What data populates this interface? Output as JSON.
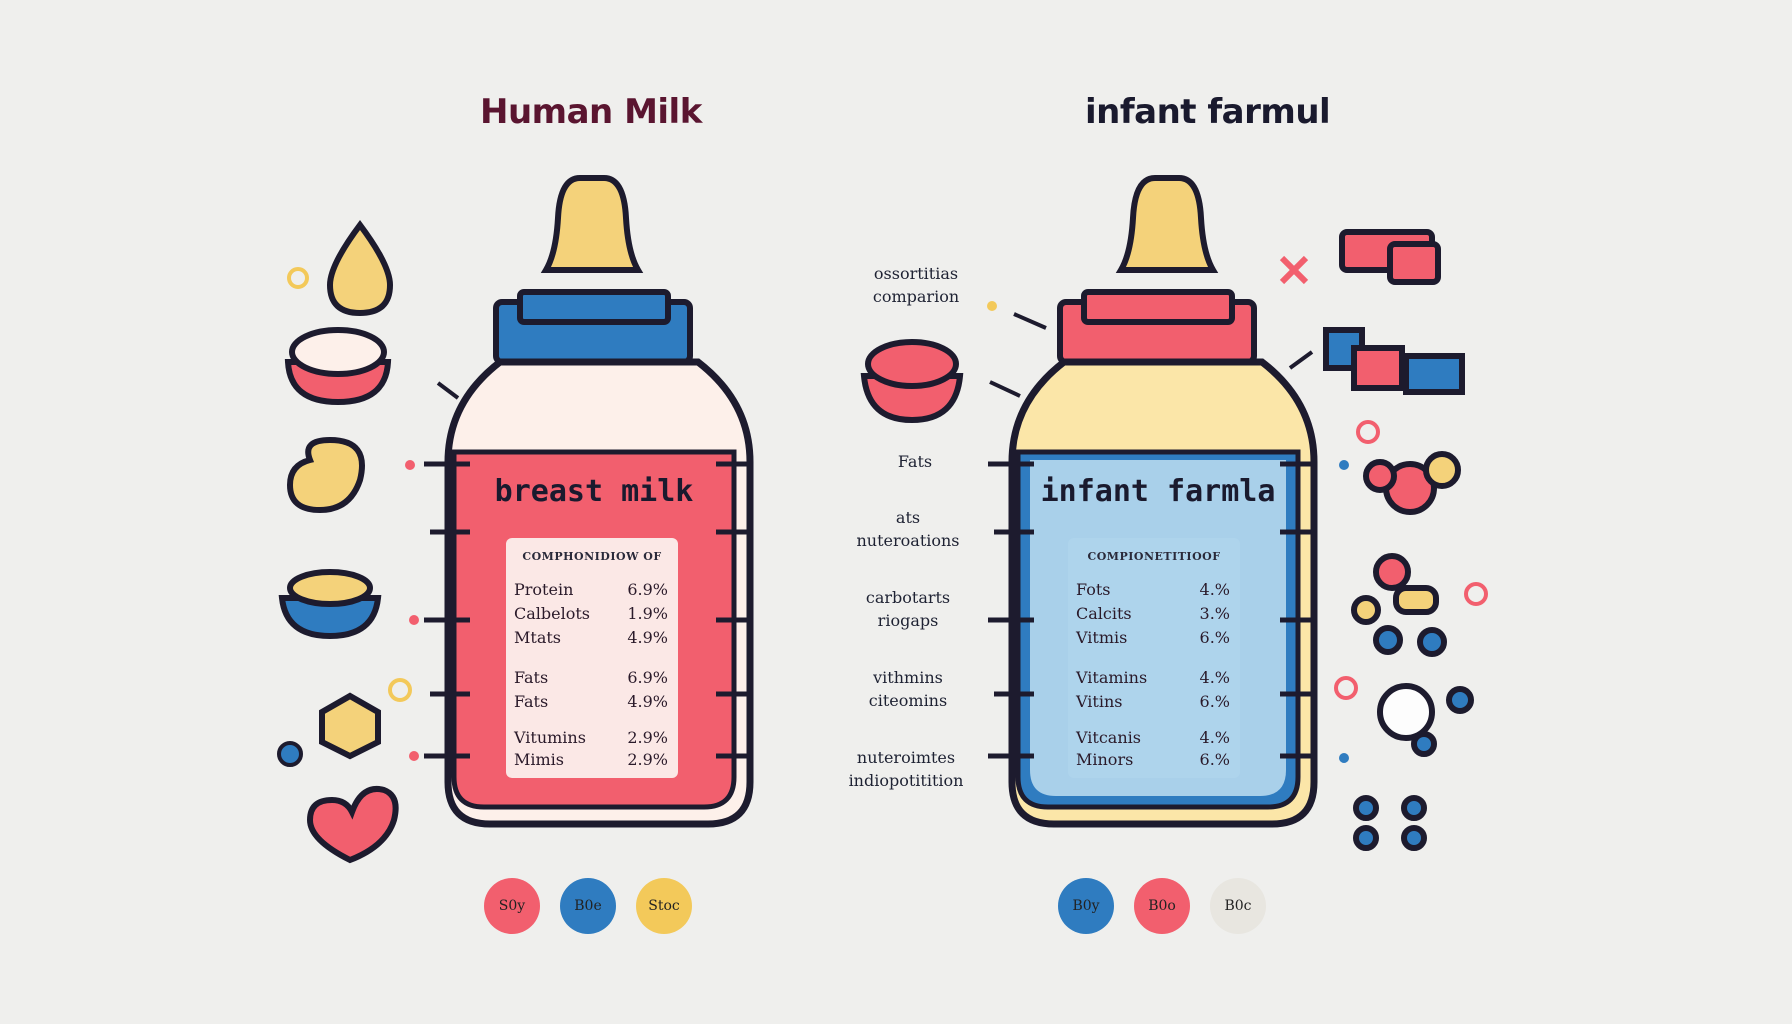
{
  "left": {
    "title": "Human Milk",
    "bottle_label": "breast milk",
    "card_title": "COMPHONIDIOW OF",
    "rows": [
      {
        "n": "Protein",
        "v": "6.9%"
      },
      {
        "n": "Calbelots",
        "v": "1.9%"
      },
      {
        "n": "Mtats",
        "v": "4.9%"
      },
      {
        "n": "Fats",
        "v": "6.9%"
      },
      {
        "n": "Fats",
        "v": "4.9%"
      },
      {
        "n": "Vitumins",
        "v": "2.9%"
      },
      {
        "n": "Mimis",
        "v": "2.9%"
      }
    ],
    "circles": [
      {
        "label": "S0y",
        "color": "#f25f6e"
      },
      {
        "label": "B0e",
        "color": "#2f7cc0"
      },
      {
        "label": "Stoc",
        "color": "#f3c95a"
      }
    ]
  },
  "right": {
    "title": "infant farmul",
    "bottle_label": "infant farmla",
    "card_title": "COMPIONETITIOOF",
    "rows": [
      {
        "n": "Fots",
        "v": "4.%"
      },
      {
        "n": "Calcits",
        "v": "3.%"
      },
      {
        "n": "Vitmis",
        "v": "6.%"
      },
      {
        "n": "Vitamins",
        "v": "4.%"
      },
      {
        "n": "Vitins",
        "v": "6.%"
      },
      {
        "n": "Vitcanis",
        "v": "4.%"
      },
      {
        "n": "Minors",
        "v": "6.%"
      }
    ],
    "circles": [
      {
        "label": "B0y",
        "color": "#2f7cc0"
      },
      {
        "label": "B0o",
        "color": "#f25f6e"
      },
      {
        "label": "B0c",
        "color": "#e8e6e0"
      }
    ]
  },
  "side_labels": [
    {
      "l1": "ossortitias",
      "l2": "comparion"
    },
    {
      "l1": "Fats",
      "l2": ""
    },
    {
      "l1": "ats",
      "l2": "nuteroations"
    },
    {
      "l1": "carbotarts",
      "l2": "riogaps"
    },
    {
      "l1": "vithmins",
      "l2": "citeomins"
    },
    {
      "l1": "nuteroimtes",
      "l2": "indiopotitition"
    }
  ],
  "colors": {
    "red": "#f25f6e",
    "blue": "#2f7cc0",
    "yellow": "#f3c95a",
    "outline": "#1d1b2e"
  }
}
